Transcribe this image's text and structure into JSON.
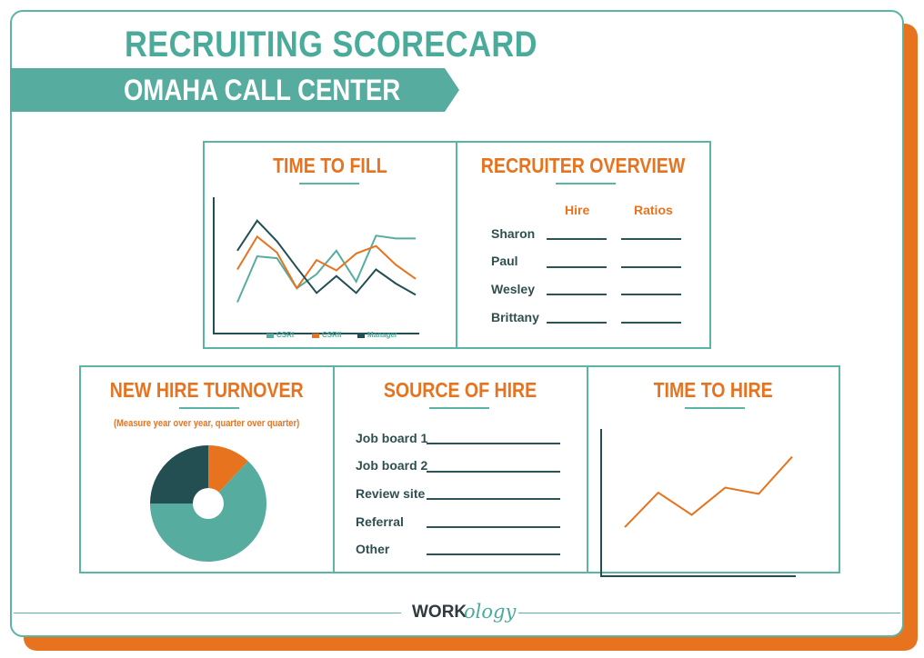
{
  "header": {
    "title": "RECRUITING SCORECARD",
    "subtitle": "OMAHA CALL CENTER"
  },
  "colors": {
    "teal": "#56ad9f",
    "orange": "#e8731f",
    "dark": "#234e52"
  },
  "time_to_fill": {
    "title": "TIME TO FILL",
    "chart_data": {
      "type": "line",
      "x": [
        1,
        2,
        3,
        4,
        5,
        6,
        7,
        8,
        9,
        10
      ],
      "series": [
        {
          "name": "CSRI",
          "color": "#56ad9f",
          "values": [
            1.0,
            5.9,
            5.7,
            2.5,
            4.0,
            6.5,
            3.2,
            8.1,
            7.8,
            7.8
          ]
        },
        {
          "name": "CSRII",
          "color": "#e8731f",
          "values": [
            4.5,
            8.0,
            6.3,
            2.5,
            5.5,
            4.4,
            6.2,
            7.0,
            5.0,
            3.5
          ]
        },
        {
          "name": "Manager",
          "color": "#234e52",
          "values": [
            6.5,
            9.7,
            7.5,
            4.7,
            2.0,
            3.8,
            2.0,
            4.5,
            3.0,
            1.8
          ]
        }
      ],
      "ylim": [
        0,
        12
      ],
      "xlabel": "",
      "ylabel": ""
    }
  },
  "recruiter_overview": {
    "title": "RECRUITER OVERVIEW",
    "columns": [
      "Hire",
      "Ratios"
    ],
    "rows": [
      "Sharon",
      "Paul",
      "Wesley",
      "Brittany"
    ]
  },
  "new_hire_turnover": {
    "title": "NEW HIRE TURNOVER",
    "note": "(Measure year over year, quarter over quarter)",
    "chart_data": {
      "type": "pie",
      "slices": [
        {
          "color": "#e8731f",
          "value": 12
        },
        {
          "color": "#56ad9f",
          "value": 63
        },
        {
          "color": "#234e52",
          "value": 25
        }
      ]
    }
  },
  "source_of_hire": {
    "title": "SOURCE OF HIRE",
    "rows": [
      "Job board 1",
      "Job board 2",
      "Review site",
      "Referral",
      "Other"
    ]
  },
  "time_to_hire": {
    "title": "TIME TO HIRE",
    "chart_data": {
      "type": "line",
      "x": [
        1,
        2,
        3,
        4,
        5,
        6
      ],
      "series": [
        {
          "color": "#e8731f",
          "values": [
            2.2,
            5.0,
            3.2,
            5.4,
            4.9,
            7.9
          ]
        }
      ],
      "ylim": [
        0,
        10
      ],
      "xlabel": "",
      "ylabel": ""
    }
  },
  "footer": {
    "logo_part1": "WORK",
    "logo_part2": "ology"
  }
}
